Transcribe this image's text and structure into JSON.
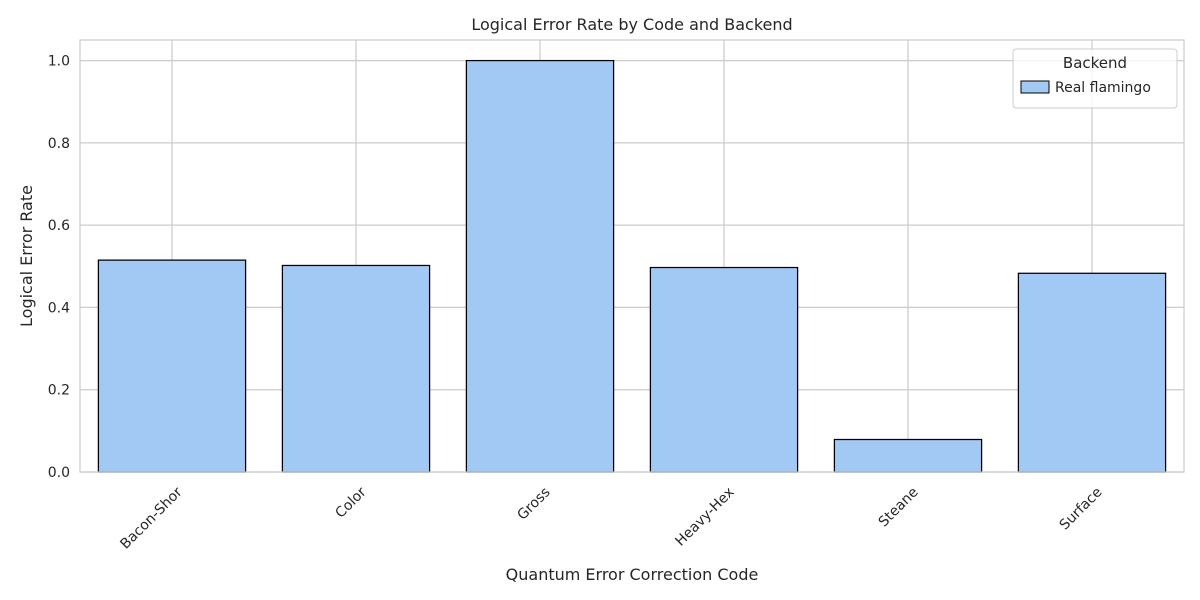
{
  "chart_data": {
    "type": "bar",
    "title": "Logical Error Rate by Code and Backend",
    "xlabel": "Quantum Error Correction Code",
    "ylabel": "Logical Error Rate",
    "categories": [
      "Bacon-Shor",
      "Color",
      "Gross",
      "Heavy-Hex",
      "Steane",
      "Surface"
    ],
    "series": [
      {
        "name": "Real flamingo",
        "values": [
          0.515,
          0.502,
          1.0,
          0.497,
          0.079,
          0.483
        ]
      }
    ],
    "ylim": [
      0,
      1.05
    ],
    "yticks": [
      0.0,
      0.2,
      0.4,
      0.6,
      0.8,
      1.0
    ],
    "grid": true,
    "legend": {
      "title": "Backend",
      "position": "top-right"
    },
    "colors": {
      "bar_fill": "#a1c9f4",
      "bar_edge": "#000000",
      "grid": "#cccccc",
      "spine": "#cccccc"
    }
  }
}
